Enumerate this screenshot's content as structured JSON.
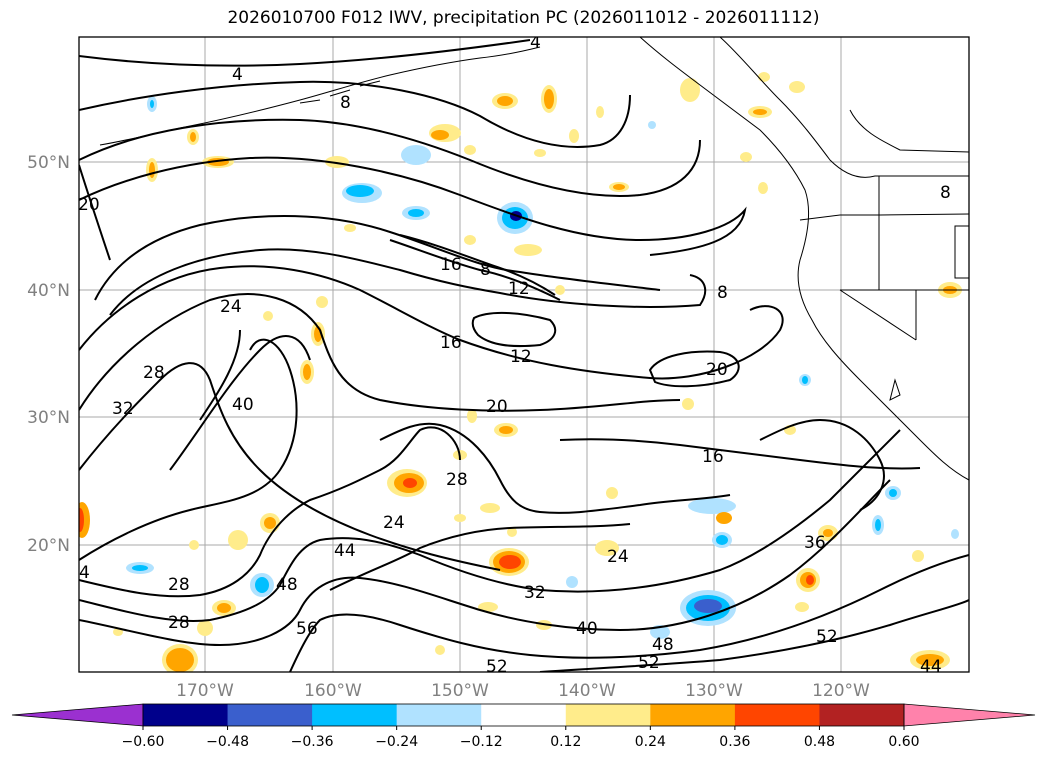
{
  "title": "2026010700 F012 IWV, precipitation PC (2026011012 - 2026011112)",
  "map": {
    "lat_labels": [
      "50°N",
      "40°N",
      "30°N",
      "20°N"
    ],
    "lon_labels": [
      "170°W",
      "160°W",
      "150°W",
      "140°W",
      "130°W",
      "120°W"
    ],
    "contour_labels": [
      "4",
      "4",
      "8",
      "20",
      "24",
      "28",
      "32",
      "40",
      "16",
      "16",
      "12",
      "8",
      "12",
      "8",
      "20",
      "20",
      "28",
      "24",
      "44",
      "48",
      "28",
      "28",
      "56",
      "32",
      "40",
      "48",
      "52",
      "52",
      "24",
      "16",
      "36",
      "4",
      "52",
      "44",
      "8"
    ],
    "label_color": "#808080",
    "land_outline_color": "#000000"
  },
  "colorbar": {
    "tick_labels": [
      "−0.60",
      "−0.48",
      "−0.36",
      "−0.24",
      "−0.12",
      "0.12",
      "0.24",
      "0.36",
      "0.48",
      "0.60"
    ],
    "colors": [
      "#9b30d0",
      "#00008b",
      "#3a5fcd",
      "#00bfff",
      "#b0e2ff",
      "#ffffff",
      "#ffec8b",
      "#ffa500",
      "#ff4500",
      "#b22222",
      "#ff82ab"
    ]
  }
}
